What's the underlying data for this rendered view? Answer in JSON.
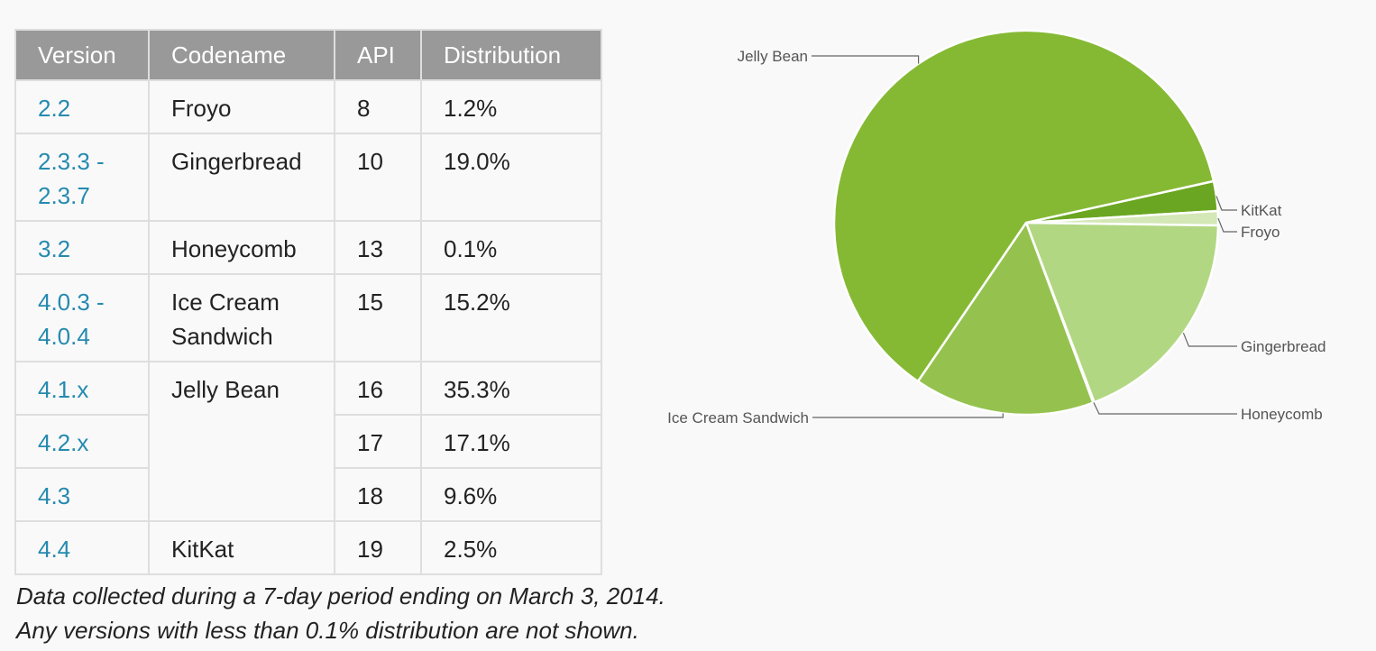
{
  "table": {
    "headers": [
      "Version",
      "Codename",
      "API",
      "Distribution"
    ],
    "rows": [
      {
        "version": "2.2",
        "codename": "Froyo",
        "api": "8",
        "distribution": "1.2%"
      },
      {
        "version": "2.3.3 - 2.3.7",
        "codename": "Gingerbread",
        "api": "10",
        "distribution": "19.0%"
      },
      {
        "version": "3.2",
        "codename": "Honeycomb",
        "api": "13",
        "distribution": "0.1%"
      },
      {
        "version": "4.0.3 - 4.0.4",
        "codename": "Ice Cream Sandwich",
        "api": "15",
        "distribution": "15.2%"
      },
      {
        "version": "4.1.x",
        "codename": "Jelly Bean",
        "api": "16",
        "distribution": "35.3%"
      },
      {
        "version": "4.2.x",
        "codename": "",
        "api": "17",
        "distribution": "17.1%"
      },
      {
        "version": "4.3",
        "codename": "",
        "api": "18",
        "distribution": "9.6%"
      },
      {
        "version": "4.4",
        "codename": "KitKat",
        "api": "19",
        "distribution": "2.5%"
      }
    ]
  },
  "notes": {
    "line1": "Data collected during a 7-day period ending on March 3, 2014.",
    "line2": "Any versions with less than 0.1% distribution are not shown."
  },
  "chart_data": {
    "type": "pie",
    "slices": [
      {
        "label": "KitKat",
        "value": 2.5,
        "color": "#6aa621"
      },
      {
        "label": "Froyo",
        "value": 1.2,
        "color": "#d4e7b6"
      },
      {
        "label": "Gingerbread",
        "value": 19.0,
        "color": "#b2d783"
      },
      {
        "label": "Honeycomb",
        "value": 0.1,
        "color": "#c5e09f"
      },
      {
        "label": "Ice Cream Sandwich",
        "value": 15.2,
        "color": "#95c24f"
      },
      {
        "label": "Jelly Bean",
        "value": 62.0,
        "color": "#85b934"
      }
    ],
    "legend": "callouts"
  }
}
